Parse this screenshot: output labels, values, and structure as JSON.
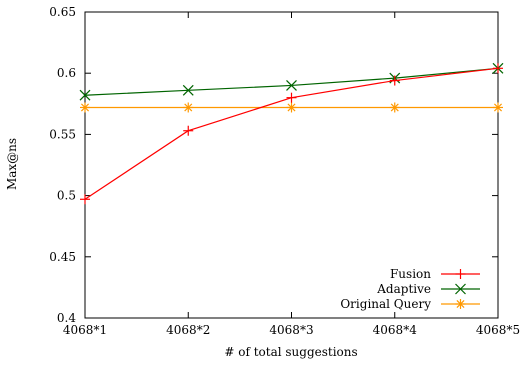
{
  "chart_data": {
    "type": "line",
    "title": "",
    "xlabel": "# of total suggestions",
    "ylabel": "Max@ns",
    "categories": [
      "4068*1",
      "4068*2",
      "4068*3",
      "4068*4",
      "4068*5"
    ],
    "ylim": [
      0.4,
      0.65
    ],
    "yticks": [
      "0.4",
      "0.45",
      "0.5",
      "0.55",
      "0.6",
      "0.65"
    ],
    "grid": false,
    "legend_position": "bottom-right",
    "series": [
      {
        "name": "Fusion",
        "color": "#ff0000",
        "marker": "plus",
        "values": [
          0.497,
          0.553,
          0.58,
          0.594,
          0.604
        ]
      },
      {
        "name": "Adaptive",
        "color": "#006400",
        "marker": "cross",
        "values": [
          0.582,
          0.586,
          0.59,
          0.596,
          0.604
        ]
      },
      {
        "name": "Original Query",
        "color": "#ff9900",
        "marker": "star",
        "values": [
          0.572,
          0.572,
          0.572,
          0.572,
          0.572
        ]
      }
    ]
  }
}
